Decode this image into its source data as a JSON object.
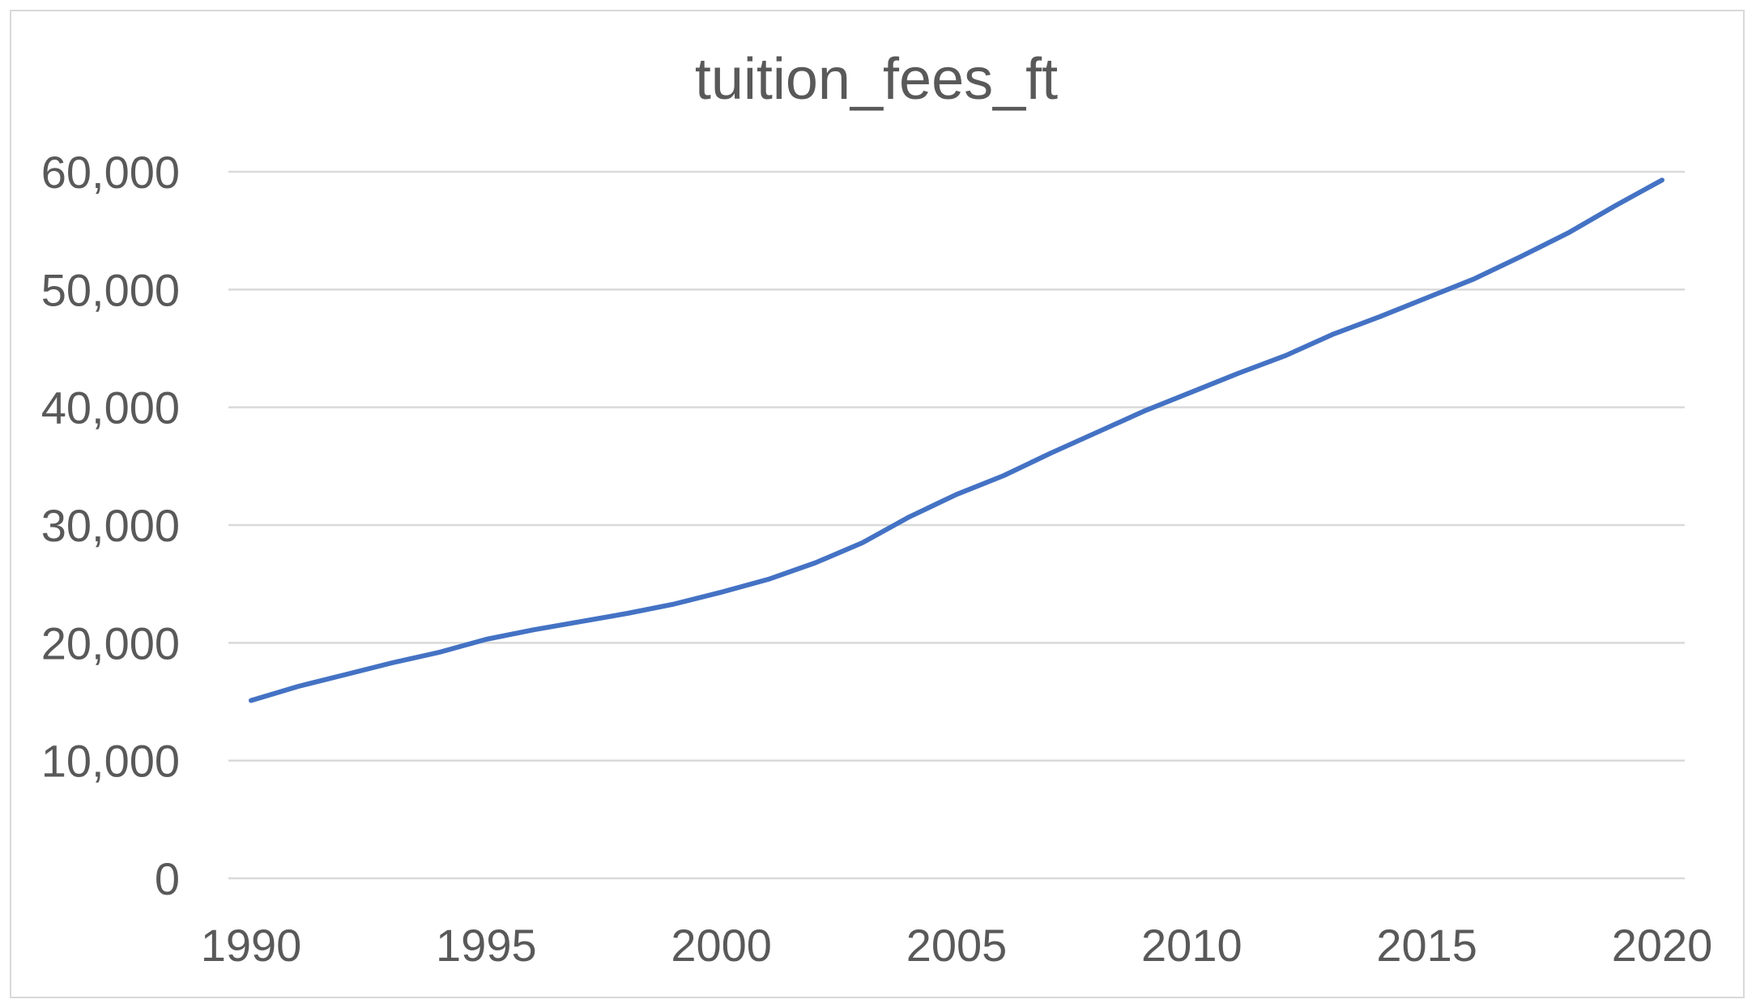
{
  "chart_data": {
    "type": "line",
    "title": "tuition_fees_ft",
    "xlabel": "",
    "ylabel": "",
    "xlim": [
      1990,
      2020
    ],
    "ylim": [
      0,
      60000
    ],
    "x_ticks": [
      1990,
      1995,
      2000,
      2005,
      2010,
      2015,
      2020
    ],
    "y_ticks": [
      0,
      10000,
      20000,
      30000,
      40000,
      50000,
      60000
    ],
    "x_tick_labels": [
      "1990",
      "1995",
      "2000",
      "2005",
      "2010",
      "2015",
      "2020"
    ],
    "y_tick_labels": [
      "0",
      "10,000",
      "20,000",
      "30,000",
      "40,000",
      "50,000",
      "60,000"
    ],
    "grid": "horizontal",
    "legend": "none",
    "series": [
      {
        "color": "#4472c4",
        "x": [
          1990,
          1991,
          1992,
          1993,
          1994,
          1995,
          1996,
          1997,
          1998,
          1999,
          2000,
          2001,
          2002,
          2003,
          2004,
          2005,
          2006,
          2007,
          2008,
          2009,
          2010,
          2011,
          2012,
          2013,
          2014,
          2015,
          2016,
          2017,
          2018,
          2019,
          2020
        ],
        "y": [
          15100,
          16300,
          17300,
          18300,
          19200,
          20300,
          21100,
          21800,
          22500,
          23300,
          24300,
          25400,
          26800,
          28500,
          30700,
          32600,
          34200,
          36100,
          37900,
          39700,
          41300,
          42900,
          44400,
          46200,
          47700,
          49300,
          50900,
          52800,
          54800,
          57100,
          59300
        ]
      }
    ]
  }
}
